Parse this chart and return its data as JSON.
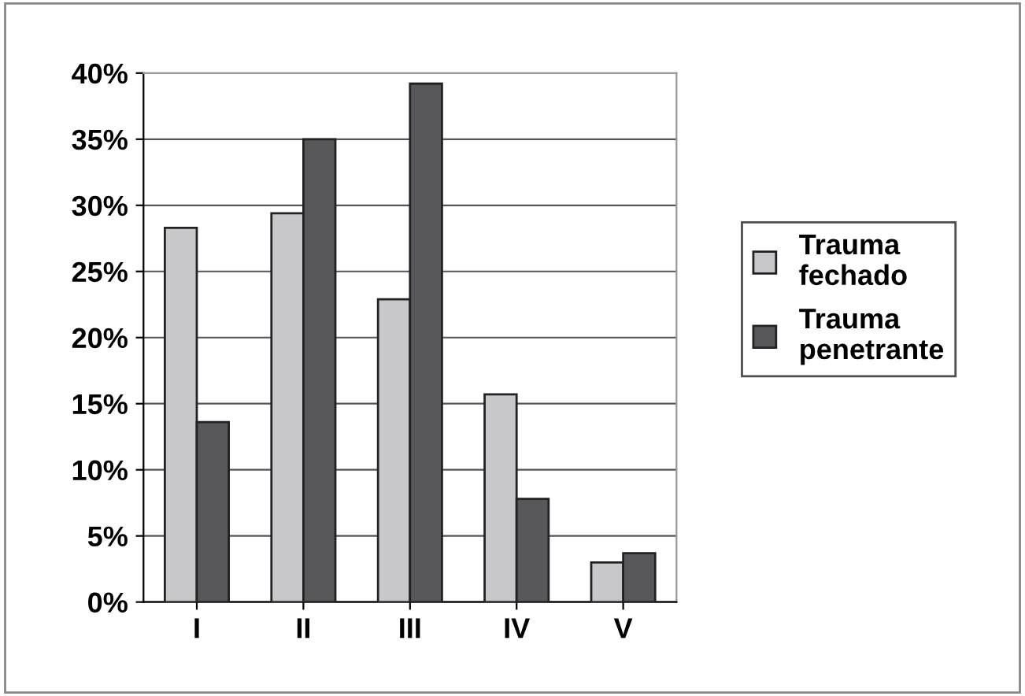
{
  "chart_data": {
    "type": "bar",
    "categories": [
      "I",
      "II",
      "III",
      "IV",
      "V"
    ],
    "series": [
      {
        "name": "Trauma fechado",
        "color": "#c8c8ca",
        "values": [
          28.3,
          29.4,
          22.9,
          15.7,
          3.0
        ]
      },
      {
        "name": "Trauma penetrante",
        "color": "#58585a",
        "values": [
          13.6,
          35.0,
          39.2,
          7.8,
          3.7
        ]
      }
    ],
    "ylim": [
      0,
      40
    ],
    "yticks": [
      {
        "value": 0,
        "label": "0%"
      },
      {
        "value": 5,
        "label": "5%"
      },
      {
        "value": 10,
        "label": "10%"
      },
      {
        "value": 15,
        "label": "15%"
      },
      {
        "value": 20,
        "label": "20%"
      },
      {
        "value": 25,
        "label": "25%"
      },
      {
        "value": 30,
        "label": "30%"
      },
      {
        "value": 35,
        "label": "35%"
      },
      {
        "value": 40,
        "label": "40%"
      }
    ],
    "grid": "y",
    "legend": "right"
  }
}
